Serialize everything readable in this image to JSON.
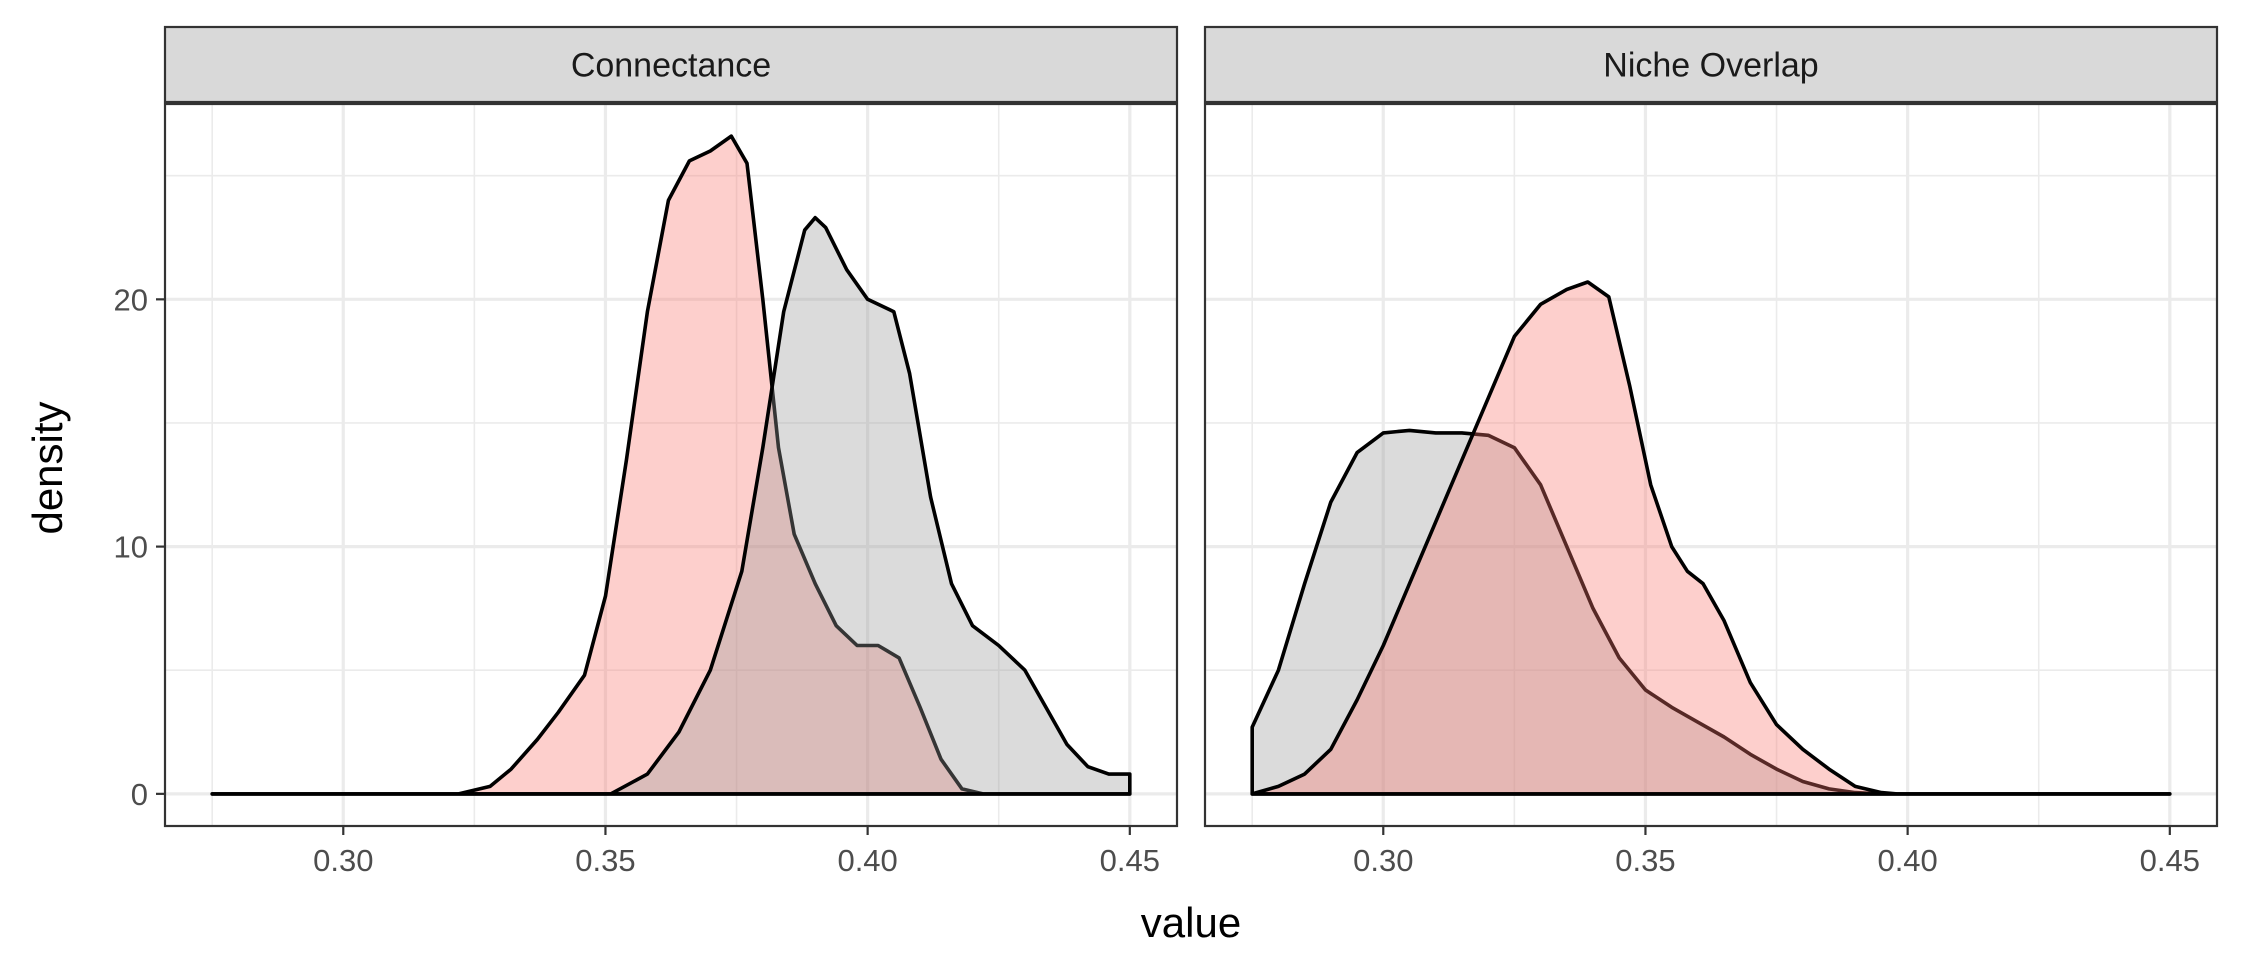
{
  "chart_data": {
    "type": "area",
    "subtype": "density",
    "xlabel": "value",
    "ylabel": "density",
    "xlim": [
      0.266,
      0.459
    ],
    "ylim": [
      -1.3,
      27.9
    ],
    "x_ticks": [
      0.3,
      0.35,
      0.4,
      0.45
    ],
    "x_tick_labels": [
      "0.30",
      "0.35",
      "0.40",
      "0.45"
    ],
    "y_ticks": [
      0,
      10,
      20
    ],
    "y_tick_labels": [
      "0",
      "10",
      "20"
    ],
    "grid": true,
    "legend": "none",
    "fill_colors": {
      "pink": "#F8766D",
      "gray": "#999999"
    },
    "fill_opacity": 0.35,
    "outline_color": "#000000",
    "panels": [
      {
        "label": "Connectance",
        "series": [
          {
            "fill": "pink",
            "points": [
              [
                0.275,
                0
              ],
              [
                0.322,
                0
              ],
              [
                0.328,
                0.3
              ],
              [
                0.332,
                1.0
              ],
              [
                0.337,
                2.2
              ],
              [
                0.341,
                3.3
              ],
              [
                0.346,
                4.8
              ],
              [
                0.35,
                8.0
              ],
              [
                0.354,
                13.5
              ],
              [
                0.358,
                19.5
              ],
              [
                0.362,
                24.0
              ],
              [
                0.366,
                25.6
              ],
              [
                0.37,
                26.0
              ],
              [
                0.374,
                26.6
              ],
              [
                0.377,
                25.5
              ],
              [
                0.38,
                20.0
              ],
              [
                0.383,
                14.0
              ],
              [
                0.386,
                10.5
              ],
              [
                0.39,
                8.5
              ],
              [
                0.394,
                6.8
              ],
              [
                0.398,
                6.0
              ],
              [
                0.402,
                6.0
              ],
              [
                0.406,
                5.5
              ],
              [
                0.41,
                3.5
              ],
              [
                0.414,
                1.4
              ],
              [
                0.418,
                0.2
              ],
              [
                0.422,
                0
              ],
              [
                0.45,
                0
              ]
            ]
          },
          {
            "fill": "gray",
            "points": [
              [
                0.275,
                0
              ],
              [
                0.351,
                0
              ],
              [
                0.358,
                0.8
              ],
              [
                0.364,
                2.5
              ],
              [
                0.37,
                5.0
              ],
              [
                0.376,
                9.0
              ],
              [
                0.38,
                14.0
              ],
              [
                0.384,
                19.5
              ],
              [
                0.388,
                22.8
              ],
              [
                0.39,
                23.3
              ],
              [
                0.392,
                22.9
              ],
              [
                0.396,
                21.2
              ],
              [
                0.4,
                20.0
              ],
              [
                0.405,
                19.5
              ],
              [
                0.408,
                17.0
              ],
              [
                0.412,
                12.0
              ],
              [
                0.416,
                8.5
              ],
              [
                0.42,
                6.8
              ],
              [
                0.425,
                6.0
              ],
              [
                0.43,
                5.0
              ],
              [
                0.434,
                3.5
              ],
              [
                0.438,
                2.0
              ],
              [
                0.442,
                1.1
              ],
              [
                0.446,
                0.8
              ],
              [
                0.45,
                0.8
              ],
              [
                0.45,
                0
              ]
            ]
          }
        ]
      },
      {
        "label": "Niche Overlap",
        "series": [
          {
            "fill": "gray",
            "points": [
              [
                0.275,
                0
              ],
              [
                0.275,
                2.7
              ],
              [
                0.28,
                5.0
              ],
              [
                0.285,
                8.5
              ],
              [
                0.29,
                11.8
              ],
              [
                0.295,
                13.8
              ],
              [
                0.3,
                14.6
              ],
              [
                0.305,
                14.7
              ],
              [
                0.31,
                14.6
              ],
              [
                0.315,
                14.6
              ],
              [
                0.32,
                14.5
              ],
              [
                0.325,
                14.0
              ],
              [
                0.33,
                12.5
              ],
              [
                0.335,
                10.0
              ],
              [
                0.34,
                7.5
              ],
              [
                0.345,
                5.5
              ],
              [
                0.35,
                4.2
              ],
              [
                0.355,
                3.5
              ],
              [
                0.36,
                2.9
              ],
              [
                0.365,
                2.3
              ],
              [
                0.37,
                1.6
              ],
              [
                0.375,
                1.0
              ],
              [
                0.38,
                0.5
              ],
              [
                0.385,
                0.2
              ],
              [
                0.39,
                0.05
              ],
              [
                0.395,
                0
              ],
              [
                0.45,
                0
              ]
            ]
          },
          {
            "fill": "pink",
            "points": [
              [
                0.275,
                0
              ],
              [
                0.28,
                0.3
              ],
              [
                0.285,
                0.8
              ],
              [
                0.29,
                1.8
              ],
              [
                0.295,
                3.8
              ],
              [
                0.3,
                6.0
              ],
              [
                0.305,
                8.5
              ],
              [
                0.31,
                11.0
              ],
              [
                0.315,
                13.5
              ],
              [
                0.32,
                16.0
              ],
              [
                0.325,
                18.5
              ],
              [
                0.33,
                19.8
              ],
              [
                0.335,
                20.4
              ],
              [
                0.339,
                20.7
              ],
              [
                0.343,
                20.1
              ],
              [
                0.347,
                16.5
              ],
              [
                0.351,
                12.5
              ],
              [
                0.355,
                10.0
              ],
              [
                0.358,
                9.0
              ],
              [
                0.361,
                8.5
              ],
              [
                0.365,
                7.0
              ],
              [
                0.37,
                4.5
              ],
              [
                0.375,
                2.8
              ],
              [
                0.38,
                1.8
              ],
              [
                0.385,
                1.0
              ],
              [
                0.39,
                0.3
              ],
              [
                0.395,
                0.05
              ],
              [
                0.398,
                0
              ],
              [
                0.45,
                0
              ]
            ]
          }
        ]
      }
    ]
  }
}
